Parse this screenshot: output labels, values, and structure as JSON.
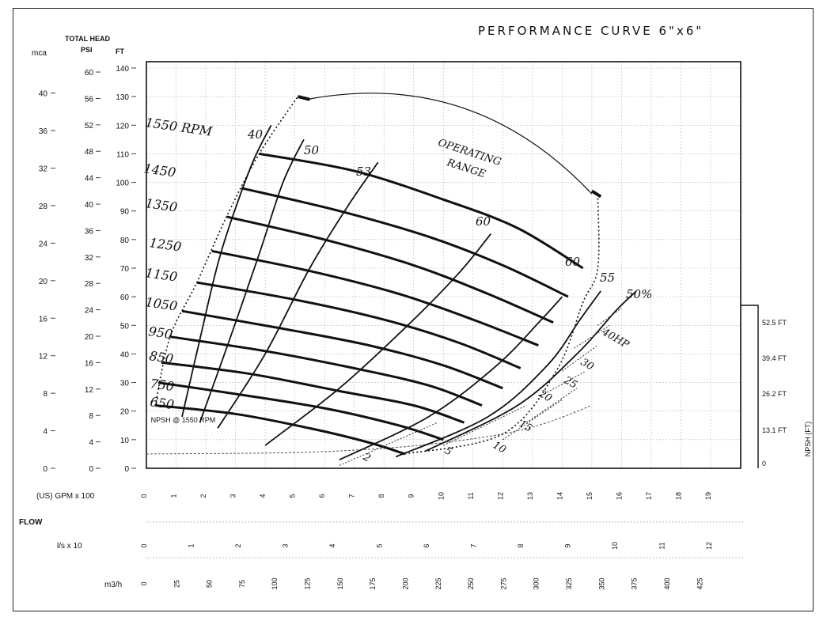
{
  "title": "PERFORMANCE CURVE 6\"x6\"",
  "header": {
    "total_head": "TOTAL HEAD",
    "mca": "mca",
    "psi": "PSI",
    "ft": "FT"
  },
  "axes": {
    "ft_ticks": [
      0,
      10,
      20,
      30,
      40,
      50,
      60,
      70,
      80,
      90,
      100,
      110,
      120,
      130,
      140
    ],
    "psi_ticks": [
      0,
      4,
      8,
      12,
      16,
      20,
      24,
      28,
      32,
      36,
      40,
      44,
      48,
      52,
      56,
      60
    ],
    "mca_ticks": [
      0,
      4,
      8,
      12,
      16,
      20,
      24,
      28,
      32,
      36,
      40
    ],
    "gpm_label": "(US) GPM x 100",
    "gpm_ticks": [
      "0",
      "1",
      "2",
      "3",
      "4",
      "5",
      "6",
      "7",
      "8",
      "9",
      "10",
      "11",
      "12",
      "13",
      "14",
      "15",
      "16",
      "17",
      "18",
      "19"
    ],
    "flow_label": "FLOW",
    "ls_label": "l/s   x 10",
    "ls_ticks": [
      "0",
      "1",
      "2",
      "3",
      "4",
      "5",
      "6",
      "7",
      "8",
      "9",
      "10",
      "11",
      "12"
    ],
    "m3h_label": "m3/h",
    "m3h_ticks": [
      "0",
      "25",
      "50",
      "75",
      "100",
      "125",
      "150",
      "175",
      "200",
      "225",
      "250",
      "275",
      "300",
      "325",
      "350",
      "375",
      "400",
      "425"
    ],
    "npsh_label": "NPSH (FT)",
    "npsh_ticks": [
      "52.5 FT",
      "39.4 FT",
      "26.2 FT",
      "13.1 FT",
      "0"
    ]
  },
  "labels": {
    "operating_range": [
      "OPERATING",
      "RANGE"
    ],
    "npsh_note": "NPSH @ 1550 RPM",
    "hp_label": "40HP",
    "pct_label": "50%"
  },
  "chart_data": {
    "type": "line",
    "title": "PERFORMANCE CURVE 6\"x6\"",
    "x_unit": "US GPM x 100",
    "y_unit": "FT",
    "xlim": [
      0,
      19
    ],
    "ylim": [
      0,
      140
    ],
    "speed_curves": [
      {
        "name": "1550 RPM",
        "points": [
          [
            3.8,
            110
          ],
          [
            7,
            104
          ],
          [
            10,
            94
          ],
          [
            12.5,
            84
          ],
          [
            14.7,
            70
          ]
        ]
      },
      {
        "name": "1450",
        "points": [
          [
            3.2,
            98
          ],
          [
            6.5,
            90
          ],
          [
            9.5,
            81
          ],
          [
            12,
            71
          ],
          [
            14.2,
            60
          ]
        ]
      },
      {
        "name": "1350",
        "points": [
          [
            2.7,
            88
          ],
          [
            6,
            80
          ],
          [
            9,
            71
          ],
          [
            11.5,
            61
          ],
          [
            13.7,
            51
          ]
        ]
      },
      {
        "name": "1250",
        "points": [
          [
            2.2,
            76
          ],
          [
            5.5,
            69
          ],
          [
            8.5,
            61
          ],
          [
            11,
            52
          ],
          [
            13.2,
            43
          ]
        ]
      },
      {
        "name": "1150",
        "points": [
          [
            1.7,
            65
          ],
          [
            5,
            59
          ],
          [
            8,
            52
          ],
          [
            10.5,
            44
          ],
          [
            12.6,
            35
          ]
        ]
      },
      {
        "name": "1050",
        "points": [
          [
            1.2,
            55
          ],
          [
            4.5,
            49
          ],
          [
            7.5,
            43
          ],
          [
            10,
            36
          ],
          [
            12,
            28
          ]
        ]
      },
      {
        "name": "950",
        "points": [
          [
            0.8,
            46
          ],
          [
            4,
            41
          ],
          [
            7,
            35
          ],
          [
            9.5,
            29
          ],
          [
            11.3,
            22
          ]
        ]
      },
      {
        "name": "850",
        "points": [
          [
            0.5,
            37
          ],
          [
            3.5,
            33
          ],
          [
            6.5,
            27
          ],
          [
            9,
            22
          ],
          [
            10.7,
            16
          ]
        ]
      },
      {
        "name": "750",
        "points": [
          [
            0.4,
            30
          ],
          [
            3,
            26
          ],
          [
            6,
            21
          ],
          [
            8.5,
            15
          ],
          [
            10,
            10
          ]
        ]
      },
      {
        "name": "650",
        "points": [
          [
            0.3,
            22
          ],
          [
            3,
            19
          ],
          [
            5.5,
            14
          ],
          [
            7.5,
            9
          ],
          [
            8.7,
            5
          ]
        ]
      }
    ],
    "efficiency_curves": [
      {
        "name": "40",
        "points": [
          [
            1.2,
            18
          ],
          [
            1.8,
            45
          ],
          [
            2.5,
            75
          ],
          [
            3.5,
            105
          ],
          [
            4.2,
            120
          ]
        ]
      },
      {
        "name": "50",
        "points": [
          [
            1.8,
            16
          ],
          [
            2.8,
            45
          ],
          [
            3.8,
            75
          ],
          [
            4.6,
            100
          ],
          [
            5.3,
            115
          ]
        ]
      },
      {
        "name": "53",
        "points": [
          [
            2.4,
            14
          ],
          [
            4,
            40
          ],
          [
            5.5,
            70
          ],
          [
            6.8,
            92
          ],
          [
            7.8,
            107
          ]
        ]
      },
      {
        "name": "60",
        "points": [
          [
            4,
            8
          ],
          [
            6.5,
            28
          ],
          [
            8.8,
            50
          ],
          [
            10.5,
            68
          ],
          [
            11.6,
            82
          ]
        ]
      },
      {
        "name": "60",
        "points": [
          [
            6.5,
            3
          ],
          [
            9.5,
            18
          ],
          [
            11.8,
            36
          ],
          [
            13.3,
            52
          ],
          [
            14,
            60
          ]
        ]
      },
      {
        "name": "55",
        "points": [
          [
            8.4,
            4
          ],
          [
            11.5,
            18
          ],
          [
            13.5,
            36
          ],
          [
            14.6,
            52
          ],
          [
            15.3,
            62
          ]
        ]
      },
      {
        "name": "50%",
        "points": [
          [
            9.4,
            6
          ],
          [
            12.5,
            22
          ],
          [
            14.5,
            40
          ],
          [
            15.8,
            55
          ],
          [
            16.5,
            62
          ]
        ]
      }
    ],
    "power_lines": [
      {
        "name": "2",
        "points": [
          [
            6.5,
            1
          ],
          [
            9.8,
            16
          ]
        ]
      },
      {
        "name": "5",
        "points": [
          [
            10,
            8
          ],
          [
            12.8,
            22
          ]
        ]
      },
      {
        "name": "10",
        "points": [
          [
            12,
            10
          ],
          [
            14,
            24
          ]
        ]
      },
      {
        "name": "15",
        "points": [
          [
            12.8,
            16
          ],
          [
            14.5,
            28
          ]
        ]
      },
      {
        "name": "20",
        "points": [
          [
            13.4,
            26
          ],
          [
            14.8,
            34
          ]
        ]
      },
      {
        "name": "25",
        "points": [
          [
            14,
            34
          ],
          [
            15.2,
            43
          ]
        ]
      },
      {
        "name": "30",
        "points": [
          [
            14.4,
            42
          ],
          [
            15.6,
            50
          ]
        ]
      },
      {
        "name": "40HP",
        "points": [
          [
            15.2,
            50
          ],
          [
            16,
            56
          ]
        ]
      }
    ],
    "npsh_curve": {
      "name": "NPSH @ 1550 RPM",
      "points": [
        [
          0,
          5
        ],
        [
          5,
          5.5
        ],
        [
          8,
          7
        ],
        [
          10,
          9
        ],
        [
          12,
          12
        ],
        [
          13.5,
          16
        ],
        [
          15,
          22
        ]
      ]
    },
    "operating_range": {
      "from": [
        5.1,
        130
      ],
      "to": [
        15.2,
        96
      ]
    }
  }
}
